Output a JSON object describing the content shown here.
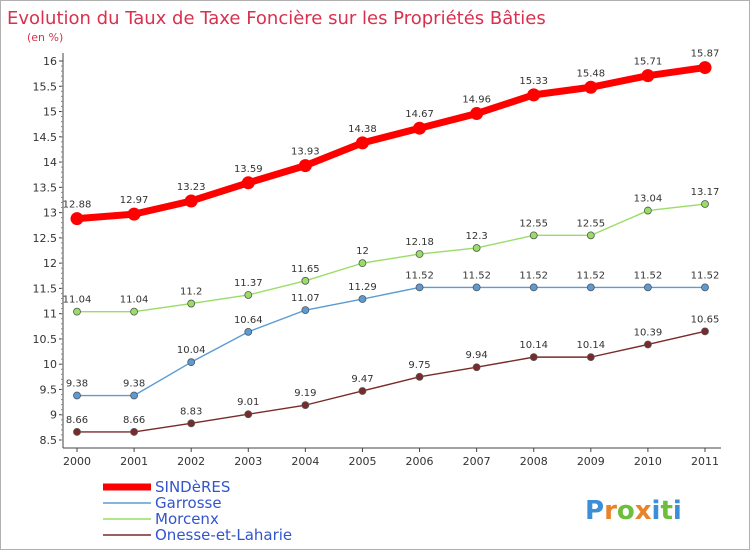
{
  "chart_data": {
    "type": "line",
    "title": "Evolution du Taux de Taxe Foncière sur les Propriétés Bâties",
    "subtitle": "(en %)",
    "x": [
      "2000",
      "2001",
      "2002",
      "2003",
      "2004",
      "2005",
      "2006",
      "2007",
      "2008",
      "2009",
      "2010",
      "2011"
    ],
    "ylim": [
      8.5,
      16
    ],
    "yticks": [
      "8.5",
      "9",
      "9.5",
      "10",
      "10.5",
      "11",
      "11.5",
      "12",
      "12.5",
      "13",
      "13.5",
      "14",
      "14.5",
      "15",
      "15.5",
      "16"
    ],
    "grid": false,
    "legend_position": "bottom-left",
    "series": [
      {
        "name": "SINDèRES",
        "color": "#ff0000",
        "values": [
          12.88,
          12.97,
          13.23,
          13.59,
          13.93,
          14.38,
          14.67,
          14.96,
          15.33,
          15.48,
          15.71,
          15.87
        ],
        "labels": [
          "12.88",
          "12.97",
          "13.23",
          "13.59",
          "13.93",
          "14.38",
          "14.67",
          "14.96",
          "15.33",
          "15.48",
          "15.71",
          "15.87"
        ]
      },
      {
        "name": "Garrosse",
        "color": "#5b9bd5",
        "values": [
          9.38,
          9.38,
          10.04,
          10.64,
          11.07,
          11.29,
          11.52,
          11.52,
          11.52,
          11.52,
          11.52,
          11.52
        ],
        "labels": [
          "9.38",
          "9.38",
          "10.04",
          "10.64",
          "11.07",
          "11.29",
          "11.52",
          "11.52",
          "11.52",
          "11.52",
          "11.52",
          "11.52"
        ]
      },
      {
        "name": "Morcenx",
        "color": "#99dd66",
        "values": [
          11.04,
          11.04,
          11.2,
          11.37,
          11.65,
          12,
          12.18,
          12.3,
          12.55,
          12.55,
          13.04,
          13.17
        ],
        "labels": [
          "11.04",
          "11.04",
          "11.2",
          "11.37",
          "11.65",
          "12",
          "12.18",
          "12.3",
          "12.55",
          "12.55",
          "13.04",
          "13.17"
        ]
      },
      {
        "name": "Onesse-et-Laharie",
        "color": "#7a2a2a",
        "values": [
          8.66,
          8.66,
          8.83,
          9.01,
          9.19,
          9.47,
          9.75,
          9.94,
          10.14,
          10.14,
          10.39,
          10.65
        ],
        "labels": [
          "8.66",
          "8.66",
          "8.83",
          "9.01",
          "9.19",
          "9.47",
          "9.75",
          "9.94",
          "10.14",
          "10.14",
          "10.39",
          "10.65"
        ]
      }
    ]
  },
  "legend": {
    "text_color": "#3355cc",
    "items": [
      "SINDèRES",
      "Garrosse",
      "Morcenx",
      "Onesse-et-Laharie"
    ]
  },
  "brand": {
    "letters": [
      "P",
      "r",
      "o",
      "x",
      "i",
      "t",
      "i"
    ],
    "colors": [
      "#3a8fd6",
      "#e8832a",
      "#6bbf3a",
      "#e8832a",
      "#3a8fd6",
      "#6bbf3a",
      "#3a8fd6"
    ]
  }
}
